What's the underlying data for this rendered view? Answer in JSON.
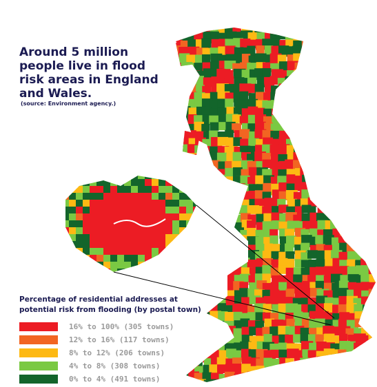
{
  "header": {
    "title_lines": [
      "Around 5 million",
      "people live in flood",
      "risk areas in England",
      "and Wales."
    ],
    "source": "(source: Environment agency.)"
  },
  "legend": {
    "title": "Percentage of residential addresses at potential risk from flooding (by postal town)",
    "items": [
      {
        "label": "16% to 100% (305 towns)",
        "color": "#ec1c24"
      },
      {
        "label": "12% to 16% (117 towns)",
        "color": "#f26522"
      },
      {
        "label": "8% to 12% (206 towns)",
        "color": "#fdb913"
      },
      {
        "label": "4% to 8% (308 towns)",
        "color": "#7ac943"
      },
      {
        "label": "0% to 4% (491 towns)",
        "color": "#13652b"
      }
    ]
  }
}
